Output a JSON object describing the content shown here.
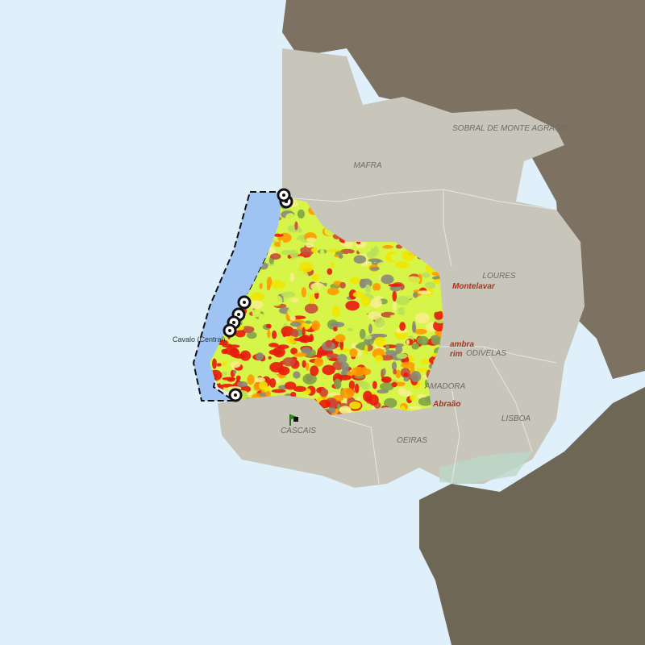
{
  "map": {
    "municipalities": [
      {
        "label": "SOBRAL DE MONTE AGRAÇO"
      },
      {
        "label": "MAFRA"
      },
      {
        "label": "LOURES"
      },
      {
        "label": "ODIVELAS"
      },
      {
        "label": "AMADORA"
      },
      {
        "label": "LISBOA"
      },
      {
        "label": "OEIRAS"
      },
      {
        "label": "CASCAIS"
      }
    ],
    "places": [
      {
        "label": "Montelavar"
      },
      {
        "label": "ambra"
      },
      {
        "label": "rim"
      },
      {
        "label": "Abraão"
      }
    ],
    "beaches": [
      {
        "label": "Cavalo (Central)"
      }
    ]
  }
}
